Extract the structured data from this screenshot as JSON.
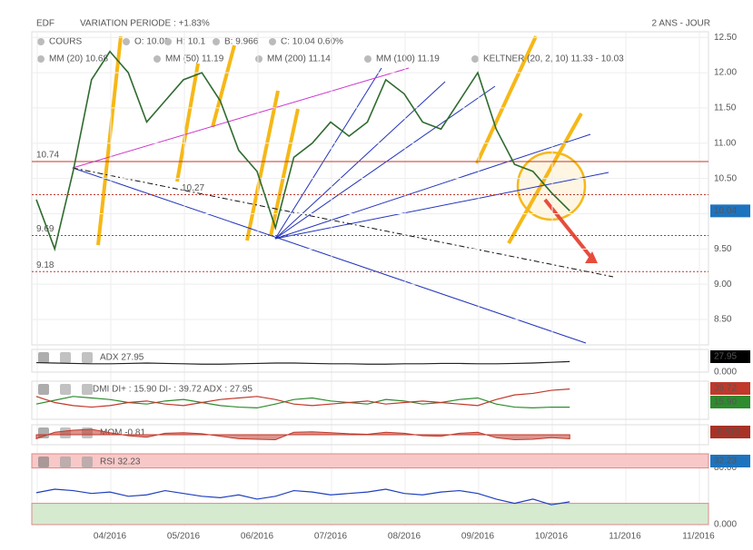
{
  "header": {
    "symbol": "EDF",
    "variation": "VARIATION PERIODE : +1.83%",
    "period": "2 ANS - JOUR"
  },
  "legend": [
    {
      "text": "COURS",
      "color": "#333333"
    },
    {
      "text": "O: 10.01",
      "color": "#333333"
    },
    {
      "text": "H: 10.1",
      "color": "#333333"
    },
    {
      "text": "B: 9.966",
      "color": "#333333"
    },
    {
      "text": "C: 10.04 0.60%",
      "color": "#333333"
    },
    {
      "text": "MM (20) 10.68",
      "color": "#c0392b"
    },
    {
      "text": "MM (50) 11.19",
      "color": "#d68910"
    },
    {
      "text": "MM (200) 11.14",
      "color": "#4caf50"
    },
    {
      "text": "MM (100) 11.19",
      "color": "#26a6b8"
    },
    {
      "text": "KELTNER (20, 2, 10) 11.33 - 10.03",
      "color": "#2e7d32"
    }
  ],
  "chart_data": [
    {
      "type": "line",
      "title": "COURS",
      "categories": [
        null,
        null,
        null,
        null,
        "04/2016",
        null,
        null,
        null,
        "05/2016",
        null,
        null,
        null,
        "06/2016",
        null,
        null,
        null,
        "07/2016",
        null,
        null,
        null,
        "08/2016",
        null,
        null,
        null,
        "09/2016",
        null,
        null,
        null,
        "10/2016",
        null,
        null,
        null,
        "11/2016",
        null,
        null,
        null,
        "11/2016"
      ],
      "series": [
        {
          "color": "#2f6b2f",
          "values": [
            10.2,
            9.5,
            10.6,
            11.9,
            12.3,
            12.0,
            11.3,
            11.6,
            11.9,
            12.0,
            11.6,
            10.9,
            10.6,
            9.8,
            10.8,
            11.0,
            11.3,
            11.1,
            11.3,
            11.9,
            11.7,
            11.3,
            11.2,
            11.6,
            12.0,
            11.2,
            10.7,
            10.6,
            10.3,
            10.04,
            null,
            null,
            null,
            null,
            null,
            null,
            null
          ]
        }
      ],
      "ylim": [
        8.14,
        12.58
      ],
      "yticks": [
        {
          "value": 12.5,
          "label": "12.50"
        },
        {
          "value": 12,
          "label": "12.00"
        },
        {
          "value": 11.5,
          "label": "11.50"
        },
        {
          "value": 11,
          "label": "11.00"
        },
        {
          "value": 10.5,
          "label": "10.50"
        },
        {
          "value": 10,
          "label": "10.00"
        },
        {
          "value": 9.5,
          "label": "9.50"
        },
        {
          "value": 9,
          "label": "9.00"
        },
        {
          "value": 8.5,
          "label": "8.50"
        }
      ],
      "levels": [
        {
          "value": 10.74,
          "color": "#c0392b"
        },
        {
          "value": 10.27,
          "color": "#c0392b"
        },
        {
          "value": 9.69,
          "color": "#c0392b"
        },
        {
          "value": 9.18,
          "color": "#c0392b"
        }
      ],
      "badges": [
        {
          "text": "10.04",
          "color": "#1e73be"
        }
      ],
      "grid": true
    },
    {
      "type": "line",
      "title": "ADX 27.95",
      "series": [
        {
          "color": "#222222",
          "values": [
            25,
            24,
            23,
            22,
            22,
            23,
            24,
            23,
            22,
            21,
            21,
            22,
            23,
            24,
            24,
            23,
            22,
            22,
            21,
            21,
            22,
            22,
            23,
            23,
            22,
            22,
            23,
            24,
            26,
            27.95,
            null,
            null,
            null,
            null,
            null,
            null,
            null
          ]
        }
      ],
      "ylim": [
        0,
        60
      ],
      "yticks": [
        {
          "value": 0,
          "label": "0.000"
        }
      ],
      "badges": [
        {
          "text": "27.95",
          "color": "#000000"
        }
      ]
    },
    {
      "type": "line",
      "title": "DMI DI+ : 15.90 DI- : 39.72 ADX : 27.95",
      "series": [
        {
          "color": "#2e8b2e",
          "values": [
            20,
            25,
            30,
            28,
            26,
            22,
            20,
            24,
            26,
            22,
            18,
            16,
            15,
            20,
            26,
            28,
            24,
            22,
            20,
            26,
            24,
            20,
            22,
            26,
            28,
            20,
            16,
            15,
            16,
            15.9,
            null,
            null,
            null,
            null,
            null,
            null,
            null
          ]
        },
        {
          "color": "#c0392b",
          "values": [
            30,
            22,
            18,
            16,
            18,
            22,
            24,
            20,
            18,
            22,
            26,
            28,
            30,
            26,
            20,
            18,
            20,
            22,
            24,
            20,
            22,
            24,
            22,
            20,
            18,
            26,
            32,
            34,
            38,
            39.72,
            null,
            null,
            null,
            null,
            null,
            null,
            null
          ]
        }
      ],
      "ylim": [
        0,
        50
      ],
      "yticks": [],
      "badges": [
        {
          "text": "39.72",
          "color": "#c0392b"
        },
        {
          "text": "15.90",
          "color": "#2e8b2e"
        }
      ]
    },
    {
      "type": "area",
      "title": "MOM -0.81",
      "series": [
        {
          "color": "#c0392b",
          "values": [
            -0.8,
            0.5,
            0.9,
            1.1,
            0.4,
            -0.2,
            -0.5,
            0.3,
            0.4,
            0.2,
            -0.3,
            -0.8,
            -0.9,
            -1.0,
            0.5,
            0.6,
            0.4,
            0.2,
            0.1,
            0.5,
            0.3,
            -0.2,
            -0.3,
            0.3,
            0.5,
            -0.6,
            -1.0,
            -0.9,
            -0.6,
            -0.81,
            null,
            null,
            null,
            null,
            null,
            null,
            null
          ]
        }
      ],
      "ylim": [
        -2,
        2
      ],
      "yticks": [],
      "badges": [
        {
          "text": "-0.810",
          "color": "#a93226"
        }
      ]
    },
    {
      "type": "line",
      "title": "RSI 32.23",
      "series": [
        {
          "color": "#1f3fbf",
          "values": [
            45,
            50,
            48,
            44,
            46,
            40,
            42,
            48,
            44,
            40,
            38,
            42,
            36,
            40,
            48,
            46,
            42,
            44,
            46,
            50,
            44,
            42,
            46,
            48,
            44,
            36,
            30,
            36,
            28,
            32.23,
            null,
            null,
            null,
            null,
            null,
            null,
            null
          ]
        }
      ],
      "ylim": [
        0,
        100
      ],
      "yticks": [
        {
          "value": 80,
          "label": "80.00"
        },
        {
          "value": 0,
          "label": "0.000"
        }
      ],
      "zones": [
        {
          "from": 80,
          "to": 100,
          "color": "#f8c8c8"
        },
        {
          "from": 0,
          "to": 30,
          "color": "#d6ead0"
        }
      ],
      "badges": [
        {
          "text": "32.23",
          "color": "#1e73be"
        }
      ]
    }
  ]
}
